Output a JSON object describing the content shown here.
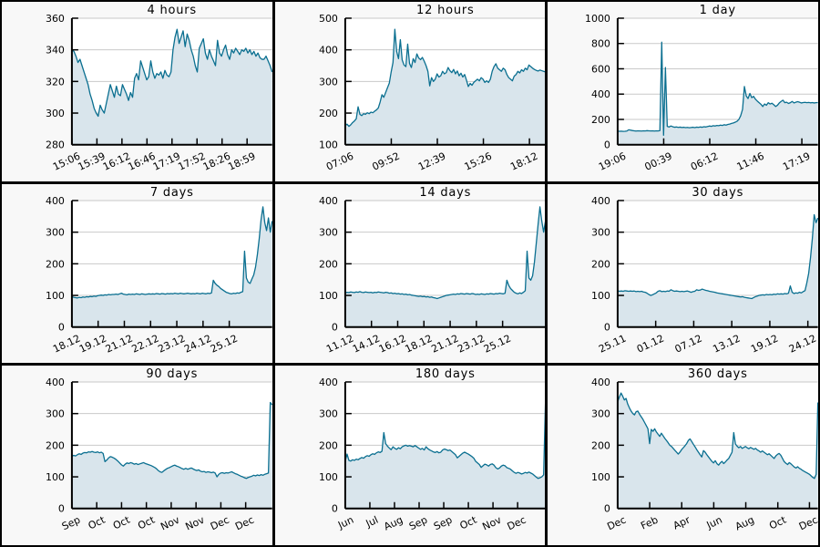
{
  "page": {
    "layout": "3x3-chart-grid",
    "panel_background": "#f8f8f8",
    "plot_background": "#ffffff",
    "divider_color": "#000000"
  },
  "style": {
    "line_color": "#0a6f90",
    "fill_color": "#d9e5ec",
    "grid_color": "#c9c9c9",
    "axis_color": "#000000",
    "text_color": "#000000"
  },
  "chart_data": [
    {
      "type": "area",
      "title": "4 hours",
      "ylim": [
        280,
        360
      ],
      "yticks": [
        280,
        300,
        320,
        340,
        360
      ],
      "xtick_pos": [
        0,
        0.125,
        0.25,
        0.375,
        0.5,
        0.625,
        0.75,
        0.875
      ],
      "xtick_labels": [
        "15:06",
        "15:39",
        "16:12",
        "16:46",
        "17:19",
        "17:52",
        "18:26",
        "18:59"
      ],
      "grid": "horizontal",
      "values": [
        340,
        339,
        336,
        332,
        334,
        330,
        326,
        322,
        318,
        312,
        308,
        303,
        300,
        298,
        305,
        302,
        300,
        306,
        312,
        318,
        314,
        310,
        317,
        312,
        311,
        318,
        315,
        312,
        308,
        313,
        310,
        322,
        325,
        321,
        333,
        329,
        325,
        321,
        323,
        333,
        326,
        322,
        325,
        324,
        326,
        322,
        327,
        324,
        323,
        326,
        340,
        348,
        353,
        344,
        348,
        352,
        342,
        350,
        346,
        340,
        336,
        330,
        326,
        341,
        344,
        347,
        338,
        334,
        340,
        336,
        333,
        330,
        346,
        338,
        336,
        340,
        343,
        337,
        334,
        340,
        338,
        341,
        339,
        337,
        340,
        339,
        341,
        338,
        340,
        337,
        339,
        336,
        338,
        335,
        334,
        334,
        336,
        333,
        330,
        326
      ]
    },
    {
      "type": "area",
      "title": "12 hours",
      "ylim": [
        100,
        500
      ],
      "yticks": [
        100,
        200,
        300,
        400,
        500
      ],
      "xtick_pos": [
        0,
        0.23,
        0.46,
        0.69,
        0.92
      ],
      "xtick_labels": [
        "07:06",
        "09:52",
        "12:39",
        "15:26",
        "18:12"
      ],
      "grid": "horizontal",
      "values": [
        160,
        165,
        158,
        163,
        170,
        175,
        182,
        220,
        196,
        192,
        198,
        196,
        201,
        198,
        203,
        201,
        206,
        210,
        216,
        235,
        258,
        250,
        265,
        280,
        295,
        330,
        360,
        465,
        395,
        372,
        432,
        368,
        352,
        347,
        418,
        357,
        344,
        372,
        360,
        387,
        374,
        369,
        376,
        364,
        350,
        332,
        286,
        312,
        300,
        307,
        324,
        314,
        318,
        332,
        324,
        328,
        344,
        334,
        328,
        338,
        324,
        333,
        318,
        326,
        314,
        322,
        304,
        284,
        294,
        288,
        297,
        302,
        307,
        302,
        312,
        307,
        297,
        302,
        297,
        307,
        332,
        347,
        356,
        342,
        337,
        332,
        342,
        337,
        322,
        312,
        307,
        302,
        317,
        322,
        332,
        327,
        337,
        332,
        342,
        337,
        352,
        347,
        342,
        338,
        335,
        333,
        336,
        334,
        332,
        330
      ]
    },
    {
      "type": "area",
      "title": "1 day",
      "ylim": [
        0,
        1000
      ],
      "yticks": [
        0,
        200,
        400,
        600,
        800,
        1000
      ],
      "xtick_pos": [
        0,
        0.23,
        0.46,
        0.69,
        0.92
      ],
      "xtick_labels": [
        "19:06",
        "00:39",
        "06:12",
        "11:46",
        "17:19"
      ],
      "grid": "horizontal",
      "values": [
        108,
        106,
        107,
        105,
        106,
        108,
        118,
        115,
        112,
        110,
        108,
        110,
        109,
        108,
        110,
        109,
        111,
        110,
        109,
        110,
        108,
        110,
        109,
        112,
        810,
        75,
        610,
        145,
        140,
        148,
        142,
        138,
        140,
        137,
        139,
        136,
        138,
        135,
        137,
        134,
        136,
        138,
        135,
        139,
        137,
        140,
        138,
        142,
        140,
        144,
        148,
        145,
        150,
        148,
        152,
        150,
        155,
        152,
        158,
        155,
        160,
        163,
        168,
        172,
        178,
        185,
        200,
        230,
        280,
        460,
        385,
        365,
        405,
        372,
        382,
        360,
        345,
        332,
        320,
        302,
        322,
        312,
        332,
        322,
        328,
        316,
        302,
        312,
        330,
        342,
        352,
        332,
        336,
        326,
        332,
        342,
        330,
        336,
        340,
        336,
        330,
        333,
        335,
        332,
        334,
        331,
        333,
        330,
        332,
        333
      ]
    },
    {
      "type": "area",
      "title": "7 days",
      "ylim": [
        0,
        400
      ],
      "yticks": [
        0,
        100,
        200,
        300,
        400
      ],
      "xtick_pos": [
        0,
        0.131,
        0.262,
        0.393,
        0.524,
        0.655,
        0.786
      ],
      "xtick_labels": [
        "18.12",
        "19.12",
        "21.12",
        "22.12",
        "23.12",
        "24.12",
        "25.12"
      ],
      "grid": "horizontal",
      "values": [
        96,
        94,
        93,
        92,
        94,
        93,
        95,
        94,
        96,
        95,
        97,
        96,
        98,
        97,
        99,
        100,
        101,
        100,
        102,
        101,
        103,
        102,
        103,
        103,
        104,
        103,
        105,
        107,
        104,
        103,
        102,
        104,
        103,
        104,
        103,
        105,
        104,
        103,
        105,
        104,
        103,
        104,
        105,
        104,
        105,
        104,
        106,
        105,
        104,
        106,
        105,
        104,
        106,
        105,
        106,
        105,
        107,
        106,
        105,
        107,
        106,
        105,
        106,
        107,
        106,
        105,
        106,
        105,
        107,
        106,
        105,
        107,
        106,
        105,
        107,
        106,
        108,
        148,
        138,
        132,
        128,
        122,
        118,
        114,
        110,
        108,
        106,
        105,
        107,
        106,
        108,
        107,
        110,
        112,
        240,
        155,
        142,
        138,
        152,
        165,
        190,
        230,
        280,
        340,
        380,
        330,
        305,
        345,
        300,
        335
      ]
    },
    {
      "type": "area",
      "title": "14 days",
      "ylim": [
        0,
        400
      ],
      "yticks": [
        0,
        100,
        200,
        300,
        400
      ],
      "xtick_pos": [
        0,
        0.131,
        0.262,
        0.393,
        0.524,
        0.655,
        0.786
      ],
      "xtick_labels": [
        "11.12",
        "14.12",
        "16.12",
        "18.12",
        "21.12",
        "23.12",
        "25.12"
      ],
      "grid": "horizontal",
      "values": [
        108,
        110,
        109,
        111,
        110,
        109,
        111,
        110,
        112,
        110,
        109,
        111,
        110,
        109,
        110,
        108,
        110,
        109,
        111,
        110,
        109,
        108,
        110,
        109,
        107,
        108,
        106,
        107,
        105,
        106,
        104,
        105,
        103,
        104,
        102,
        103,
        101,
        100,
        99,
        98,
        97,
        98,
        96,
        97,
        95,
        96,
        94,
        95,
        93,
        92,
        90,
        92,
        94,
        96,
        98,
        100,
        101,
        102,
        103,
        104,
        103,
        105,
        104,
        106,
        105,
        104,
        106,
        105,
        104,
        106,
        105,
        103,
        104,
        103,
        105,
        104,
        103,
        105,
        104,
        106,
        105,
        104,
        106,
        105,
        107,
        106,
        105,
        107,
        148,
        132,
        122,
        116,
        110,
        107,
        105,
        108,
        106,
        110,
        115,
        240,
        155,
        148,
        162,
        205,
        265,
        325,
        380,
        335,
        300,
        335
      ]
    },
    {
      "type": "area",
      "title": "30 days",
      "ylim": [
        0,
        400
      ],
      "yticks": [
        0,
        100,
        200,
        300,
        400
      ],
      "xtick_pos": [
        0,
        0.19,
        0.38,
        0.57,
        0.76,
        0.95
      ],
      "xtick_labels": [
        "25.11",
        "01.12",
        "07.12",
        "13.12",
        "19.12",
        "24.12"
      ],
      "grid": "horizontal",
      "values": [
        115,
        113,
        114,
        113,
        115,
        114,
        113,
        114,
        113,
        114,
        112,
        113,
        112,
        113,
        111,
        110,
        107,
        103,
        100,
        102,
        105,
        108,
        113,
        115,
        112,
        113,
        112,
        114,
        113,
        118,
        115,
        113,
        114,
        113,
        112,
        113,
        112,
        113,
        114,
        112,
        110,
        112,
        113,
        118,
        116,
        117,
        120,
        118,
        116,
        115,
        113,
        112,
        111,
        110,
        108,
        107,
        106,
        105,
        104,
        103,
        102,
        101,
        100,
        99,
        98,
        97,
        96,
        95,
        96,
        94,
        93,
        92,
        91,
        90,
        93,
        96,
        98,
        100,
        101,
        102,
        101,
        103,
        102,
        103,
        102,
        104,
        103,
        105,
        104,
        105,
        104,
        106,
        105,
        107,
        130,
        110,
        106,
        108,
        107,
        110,
        108,
        112,
        115,
        140,
        170,
        220,
        280,
        355,
        330,
        345
      ]
    },
    {
      "type": "area",
      "title": "90 days",
      "ylim": [
        0,
        400
      ],
      "yticks": [
        0,
        100,
        200,
        300,
        400
      ],
      "xtick_pos": [
        0,
        0.124,
        0.248,
        0.372,
        0.496,
        0.62,
        0.744,
        0.868
      ],
      "xtick_labels": [
        "Sep",
        "Oct",
        "Oct",
        "Oct",
        "Nov",
        "Nov",
        "Dec",
        "Dec"
      ],
      "grid": "horizontal",
      "values": [
        165,
        168,
        166,
        170,
        173,
        171,
        175,
        177,
        176,
        179,
        178,
        180,
        178,
        177,
        179,
        176,
        178,
        174,
        148,
        153,
        160,
        164,
        162,
        159,
        155,
        150,
        144,
        138,
        134,
        140,
        144,
        142,
        145,
        143,
        140,
        142,
        139,
        141,
        143,
        145,
        142,
        140,
        138,
        136,
        133,
        130,
        126,
        120,
        116,
        114,
        119,
        123,
        127,
        129,
        132,
        135,
        137,
        134,
        132,
        129,
        126,
        124,
        127,
        124,
        126,
        128,
        125,
        122,
        120,
        122,
        118,
        116,
        117,
        114,
        116,
        115,
        113,
        115,
        112,
        100,
        108,
        112,
        113,
        111,
        113,
        112,
        114,
        116,
        113,
        110,
        108,
        105,
        102,
        100,
        97,
        95,
        98,
        100,
        102,
        105,
        103,
        106,
        104,
        107,
        105,
        108,
        110,
        112,
        335,
        328
      ]
    },
    {
      "type": "area",
      "title": "180 days",
      "ylim": [
        0,
        400
      ],
      "yticks": [
        0,
        100,
        200,
        300,
        400
      ],
      "xtick_pos": [
        0,
        0.123,
        0.246,
        0.369,
        0.492,
        0.615,
        0.738,
        0.861
      ],
      "xtick_labels": [
        "Jun",
        "Jul",
        "Aug",
        "Sep",
        "Sep",
        "Oct",
        "Nov",
        "Dec"
      ],
      "grid": "horizontal",
      "values": [
        150,
        172,
        152,
        150,
        154,
        152,
        156,
        154,
        158,
        161,
        159,
        164,
        167,
        165,
        170,
        173,
        171,
        176,
        179,
        177,
        181,
        240,
        205,
        197,
        191,
        186,
        195,
        190,
        187,
        192,
        189,
        195,
        198,
        200,
        197,
        199,
        197,
        195,
        199,
        195,
        191,
        187,
        190,
        185,
        195,
        189,
        185,
        182,
        179,
        177,
        180,
        176,
        178,
        185,
        188,
        186,
        183,
        185,
        180,
        175,
        170,
        160,
        165,
        170,
        175,
        178,
        175,
        172,
        168,
        164,
        159,
        149,
        144,
        139,
        130,
        135,
        140,
        138,
        134,
        139,
        141,
        137,
        129,
        125,
        128,
        134,
        137,
        135,
        129,
        127,
        124,
        119,
        114,
        111,
        114,
        112,
        109,
        111,
        114,
        112,
        115,
        112,
        109,
        104,
        99,
        95,
        97,
        100,
        106,
        335
      ]
    },
    {
      "type": "area",
      "title": "360 days",
      "ylim": [
        0,
        400
      ],
      "yticks": [
        0,
        100,
        200,
        300,
        400
      ],
      "xtick_pos": [
        0,
        0.16,
        0.32,
        0.48,
        0.64,
        0.8,
        0.958
      ],
      "xtick_labels": [
        "Dec",
        "Feb",
        "Apr",
        "Jun",
        "Aug",
        "Oct",
        "Dec"
      ],
      "grid": "horizontal",
      "values": [
        338,
        352,
        365,
        355,
        343,
        348,
        330,
        318,
        308,
        300,
        296,
        306,
        308,
        298,
        290,
        282,
        272,
        262,
        252,
        205,
        250,
        244,
        252,
        242,
        235,
        228,
        238,
        230,
        222,
        215,
        208,
        200,
        196,
        190,
        184,
        178,
        172,
        178,
        186,
        192,
        198,
        205,
        215,
        220,
        212,
        203,
        195,
        186,
        178,
        170,
        163,
        183,
        178,
        170,
        163,
        156,
        149,
        144,
        151,
        142,
        137,
        144,
        149,
        142,
        147,
        153,
        158,
        168,
        178,
        240,
        204,
        197,
        192,
        196,
        190,
        193,
        196,
        192,
        189,
        193,
        190,
        187,
        190,
        185,
        182,
        178,
        182,
        178,
        174,
        170,
        173,
        168,
        163,
        158,
        166,
        171,
        174,
        168,
        158,
        148,
        143,
        139,
        145,
        141,
        136,
        131,
        128,
        132,
        127,
        124,
        120,
        117,
        114,
        111,
        108,
        103,
        98,
        95,
        108,
        335
      ]
    }
  ]
}
